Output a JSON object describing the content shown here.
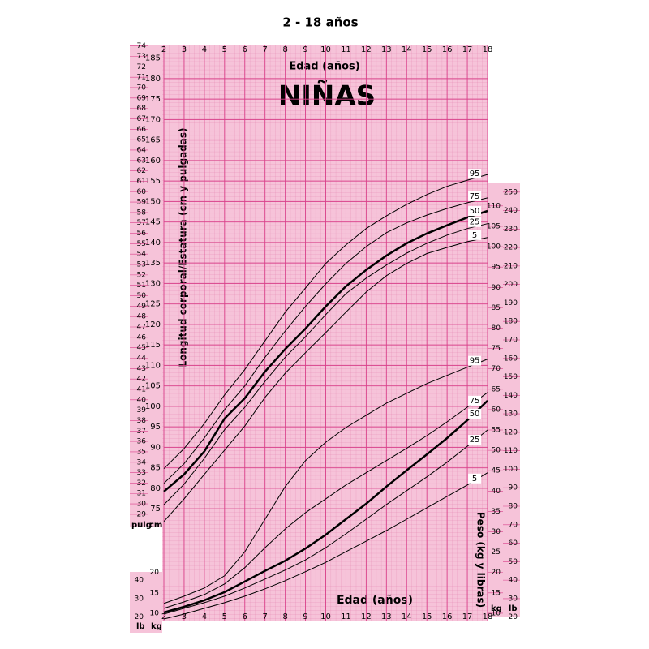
{
  "chart_data": {
    "type": "line",
    "title": "2 - 18 años",
    "subtitle": "NIÑAS",
    "x_label": "Edad (años)",
    "y_label": "Longitud corporal/Estatura (cm y pulgadas)",
    "y2_label": "Peso (kg y libras)",
    "y_unit": "cm",
    "inch_unit": "pulg",
    "y2_unit": "kg",
    "lb_unit": "lb",
    "x": [
      2,
      3,
      4,
      5,
      6,
      7,
      8,
      9,
      10,
      11,
      12,
      13,
      14,
      15,
      16,
      17,
      18
    ],
    "xlim": [
      2,
      18
    ],
    "xticks": [
      2,
      3,
      4,
      5,
      6,
      7,
      8,
      9,
      10,
      11,
      12,
      13,
      14,
      15,
      16,
      17,
      18
    ],
    "ylim": [
      47.7,
      188.3
    ],
    "yticks": [
      75,
      80,
      85,
      90,
      95,
      100,
      105,
      110,
      115,
      120,
      125,
      130,
      135,
      140,
      145,
      150,
      155,
      160,
      165,
      170,
      175,
      180,
      185
    ],
    "inch_lim": [
      18.78,
      74.13
    ],
    "inch_ticks": [
      29,
      30,
      31,
      32,
      33,
      34,
      35,
      36,
      37,
      38,
      39,
      40,
      41,
      42,
      43,
      44,
      45,
      46,
      47,
      48,
      49,
      50,
      51,
      52,
      53,
      54,
      55,
      56,
      57,
      58,
      59,
      60,
      61,
      62,
      63,
      64,
      65,
      66,
      67,
      68,
      69,
      70,
      71,
      72,
      73,
      74
    ],
    "y2lim": [
      8.2,
      149.6
    ],
    "y2ticks": [
      10,
      15,
      20,
      25,
      30,
      35,
      40,
      45,
      50,
      55,
      60,
      65,
      70,
      75,
      80,
      85,
      90,
      95,
      100,
      105,
      110
    ],
    "lb_lim": [
      18.1,
      329.8
    ],
    "lb_ticks": [
      20,
      30,
      40,
      50,
      60,
      70,
      80,
      90,
      100,
      110,
      120,
      130,
      140,
      150,
      160,
      170,
      180,
      190,
      200,
      210,
      220,
      230,
      240,
      250
    ],
    "grid": true,
    "background": "#f6c3d9",
    "grid_color": "#d9408a",
    "series": [
      {
        "name": "95",
        "color": "#000000",
        "line_width": 1,
        "values": [
          84.8,
          89.7,
          95.8,
          102.8,
          109,
          116,
          123,
          128.9,
          134.9,
          139.4,
          143.4,
          146.5,
          149.3,
          151.7,
          153.7,
          155.2,
          156.6
        ]
      },
      {
        "name": "75",
        "color": "#000000",
        "line_width": 1,
        "values": [
          81.2,
          86,
          92.3,
          99.2,
          105,
          112,
          118.4,
          124.4,
          129.9,
          134.9,
          139,
          142.4,
          144.8,
          146.7,
          148.3,
          149.7,
          150.9
        ]
      },
      {
        "name": "50",
        "color": "#000000",
        "line_width": 2.5,
        "values": [
          79.2,
          83.4,
          89,
          97,
          102,
          108.5,
          114,
          119,
          124.4,
          129.3,
          133.3,
          136.8,
          139.8,
          142.2,
          144.2,
          146.1,
          147.7
        ]
      },
      {
        "name": "25",
        "color": "#000000",
        "line_width": 1,
        "values": [
          76,
          81,
          87.3,
          94.3,
          99.8,
          106.1,
          112,
          117,
          122.4,
          127.5,
          131.3,
          134.5,
          137.4,
          139.8,
          141.8,
          143.4,
          144.6
        ]
      },
      {
        "name": "5",
        "color": "#000000",
        "line_width": 1,
        "values": [
          71.9,
          77.4,
          83.4,
          89.3,
          95.2,
          102.2,
          108.1,
          113.1,
          118,
          123,
          127.9,
          131.9,
          134.9,
          137.3,
          138.8,
          140.2,
          141.2
        ]
      },
      {
        "name": "95",
        "color": "#000000",
        "line_width": 1,
        "axis": "y2",
        "values": [
          12.4,
          14.2,
          16.2,
          19.2,
          25.1,
          33.1,
          41.1,
          47.5,
          52,
          55.6,
          58.6,
          61.6,
          64,
          66.4,
          68.4,
          70.4,
          72.4
        ]
      },
      {
        "name": "75",
        "color": "#000000",
        "line_width": 1,
        "axis": "y2",
        "values": [
          11.2,
          12.8,
          14.6,
          17.2,
          21.2,
          26.1,
          30.7,
          34.7,
          38.1,
          41.5,
          44.5,
          47.5,
          50.5,
          53.6,
          57,
          60.6,
          64.2
        ]
      },
      {
        "name": "50",
        "color": "#000000",
        "line_width": 2.5,
        "axis": "y2",
        "values": [
          10.2,
          11.6,
          13.2,
          15.2,
          17.8,
          20.4,
          22.9,
          25.9,
          29.3,
          33.1,
          36.9,
          41.1,
          45.1,
          49,
          53,
          57.4,
          62.2
        ]
      },
      {
        "name": "25",
        "color": "#000000",
        "line_width": 1,
        "axis": "y2",
        "values": [
          9.8,
          11.2,
          12.6,
          14.2,
          16.2,
          18.4,
          20.6,
          23.1,
          26.1,
          29.5,
          33.1,
          36.7,
          40.1,
          43.5,
          47.1,
          51,
          55
        ]
      },
      {
        "name": "5",
        "color": "#000000",
        "line_width": 1,
        "axis": "y2",
        "values": [
          8.6,
          9.8,
          11.2,
          12.6,
          14.2,
          16,
          18,
          20.2,
          22.5,
          25.1,
          27.7,
          30.3,
          33.1,
          35.9,
          38.7,
          41.5,
          44.5
        ]
      }
    ]
  }
}
